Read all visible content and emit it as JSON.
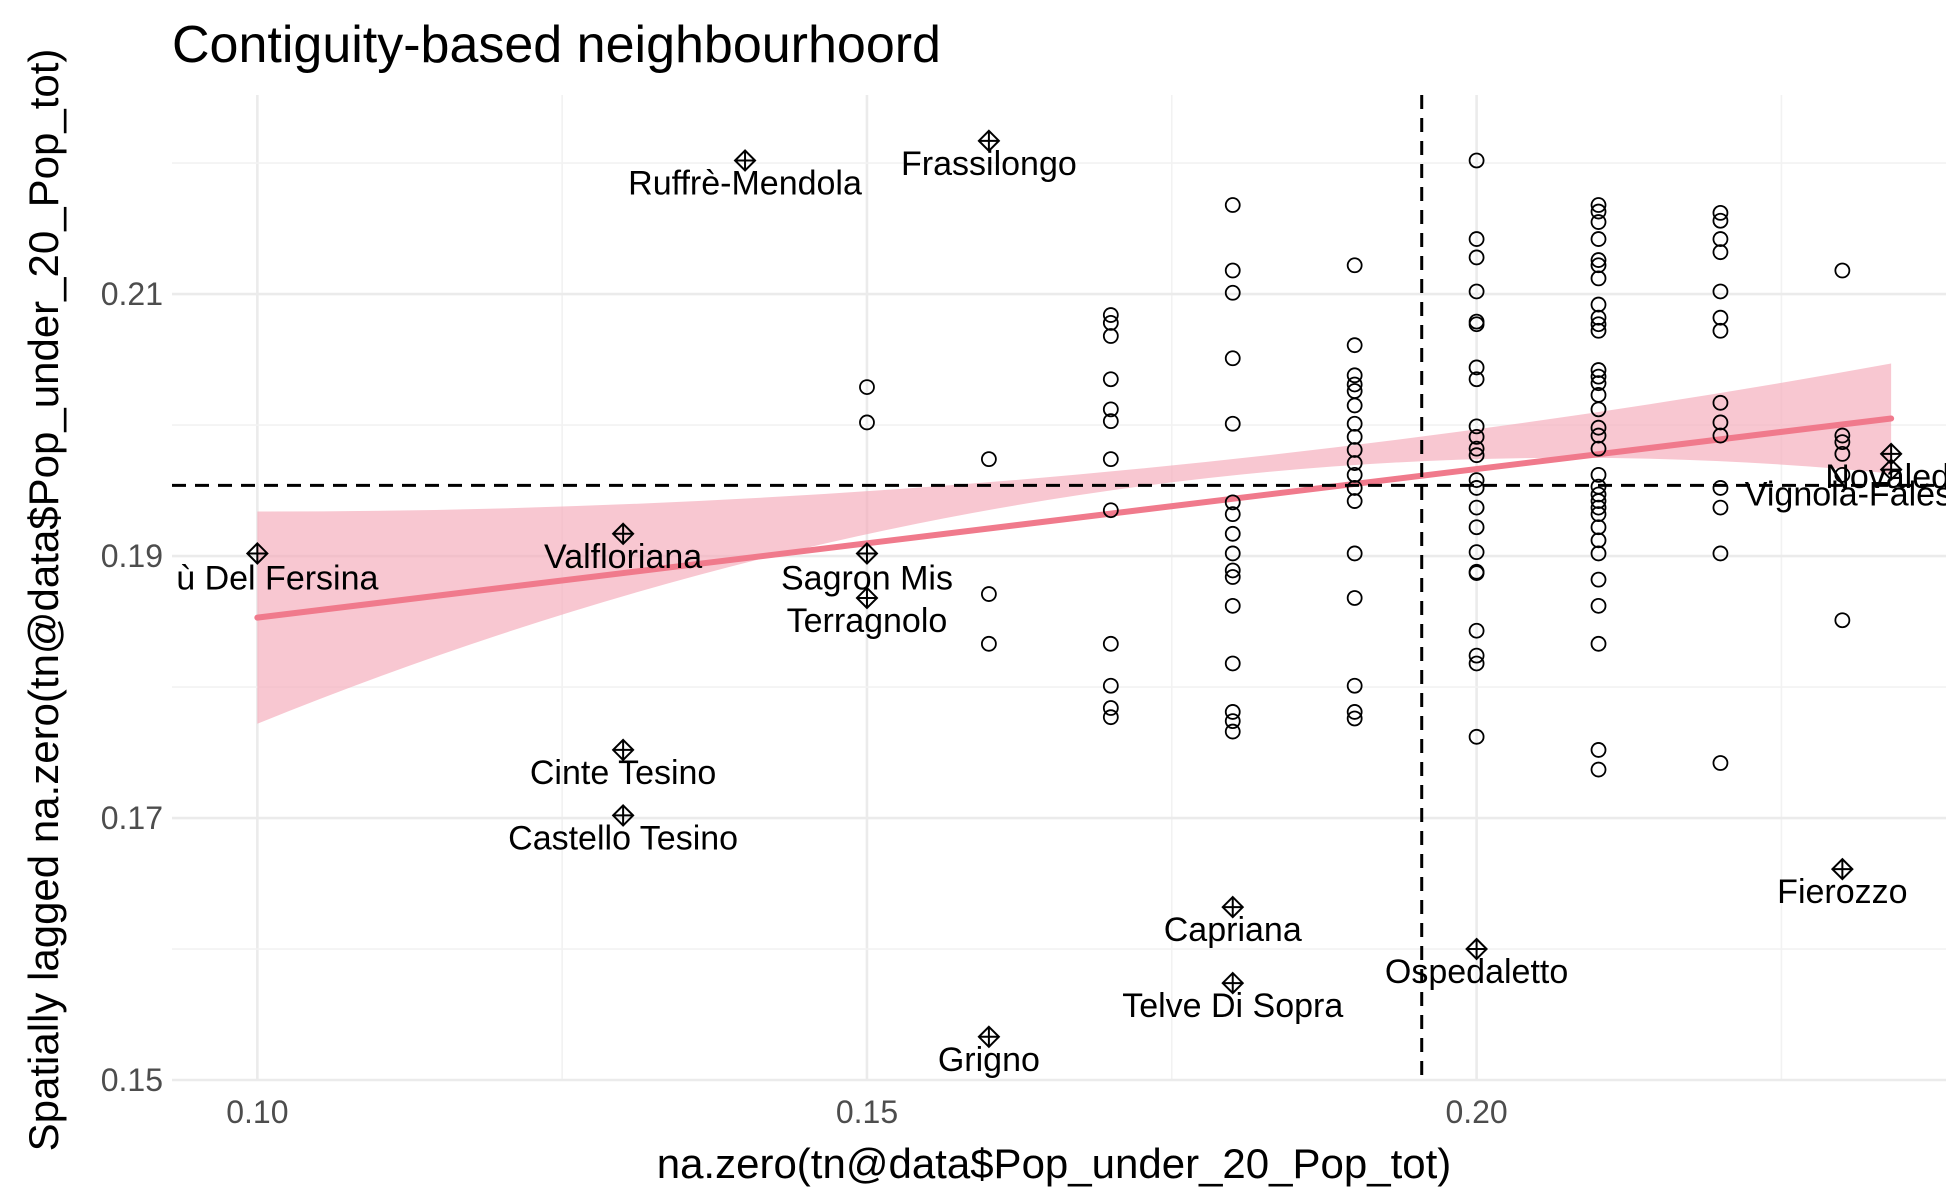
{
  "chart_data": {
    "type": "scatter",
    "title": "Contiguity-based neighbourhoord",
    "xlabel": "na.zero(tn@data$Pop_under_20_Pop_tot)",
    "ylabel": "Spatially lagged na.zero(tn@data$Pop_under_20_Pop_tot)",
    "xlim": [
      0.093,
      0.2385
    ],
    "ylim": [
      0.15,
      0.2252
    ],
    "x_ticks": [
      0.1,
      0.15,
      0.2
    ],
    "x_tick_labels": [
      "0.10",
      "0.15",
      "0.20"
    ],
    "y_ticks": [
      0.15,
      0.17,
      0.19,
      0.21
    ],
    "y_tick_labels": [
      "0.15",
      "0.17",
      "0.19",
      "0.21"
    ],
    "grid": true,
    "reference_lines": {
      "x_mean": 0.1955,
      "y_mean": 0.1954
    },
    "regression": {
      "x_start": 0.1,
      "y_start": 0.1853,
      "x_end": 0.234,
      "y_end": 0.2005,
      "ci_start": [
        0.1772,
        0.1934
      ],
      "ci_mid": [
        0.1946,
        0.1962
      ],
      "ci_end": [
        0.1963,
        0.2047
      ],
      "fill_color": "#f4a9b8",
      "line_color": "#f07a8c"
    },
    "points": [
      [
        0.15,
        0.2002
      ],
      [
        0.15,
        0.2029
      ],
      [
        0.16,
        0.1974
      ],
      [
        0.16,
        0.1871
      ],
      [
        0.16,
        0.1833
      ],
      [
        0.17,
        0.2084
      ],
      [
        0.17,
        0.2078
      ],
      [
        0.17,
        0.2068
      ],
      [
        0.17,
        0.2035
      ],
      [
        0.17,
        0.2012
      ],
      [
        0.17,
        0.2003
      ],
      [
        0.17,
        0.1974
      ],
      [
        0.17,
        0.1935
      ],
      [
        0.17,
        0.1833
      ],
      [
        0.17,
        0.1801
      ],
      [
        0.17,
        0.1784
      ],
      [
        0.17,
        0.1777
      ],
      [
        0.18,
        0.2168
      ],
      [
        0.18,
        0.2118
      ],
      [
        0.18,
        0.2101
      ],
      [
        0.18,
        0.2051
      ],
      [
        0.18,
        0.2001
      ],
      [
        0.18,
        0.1941
      ],
      [
        0.18,
        0.1932
      ],
      [
        0.18,
        0.1917
      ],
      [
        0.18,
        0.1902
      ],
      [
        0.18,
        0.1889
      ],
      [
        0.18,
        0.1884
      ],
      [
        0.18,
        0.1862
      ],
      [
        0.18,
        0.1818
      ],
      [
        0.18,
        0.1781
      ],
      [
        0.18,
        0.1774
      ],
      [
        0.18,
        0.1766
      ],
      [
        0.19,
        0.2122
      ],
      [
        0.19,
        0.2061
      ],
      [
        0.19,
        0.2038
      ],
      [
        0.19,
        0.2031
      ],
      [
        0.19,
        0.2026
      ],
      [
        0.19,
        0.2015
      ],
      [
        0.19,
        0.2001
      ],
      [
        0.19,
        0.1991
      ],
      [
        0.19,
        0.1981
      ],
      [
        0.19,
        0.1971
      ],
      [
        0.19,
        0.1962
      ],
      [
        0.19,
        0.1952
      ],
      [
        0.19,
        0.1942
      ],
      [
        0.19,
        0.1902
      ],
      [
        0.19,
        0.1868
      ],
      [
        0.19,
        0.1801
      ],
      [
        0.19,
        0.1781
      ],
      [
        0.19,
        0.1776
      ],
      [
        0.2,
        0.2202
      ],
      [
        0.2,
        0.2142
      ],
      [
        0.2,
        0.2128
      ],
      [
        0.2,
        0.2102
      ],
      [
        0.2,
        0.2079
      ],
      [
        0.2,
        0.2077
      ],
      [
        0.2,
        0.2044
      ],
      [
        0.2,
        0.2035
      ],
      [
        0.2,
        0.1999
      ],
      [
        0.2,
        0.1991
      ],
      [
        0.2,
        0.1982
      ],
      [
        0.2,
        0.1977
      ],
      [
        0.2,
        0.1958
      ],
      [
        0.2,
        0.1952
      ],
      [
        0.2,
        0.1937
      ],
      [
        0.2,
        0.1922
      ],
      [
        0.2,
        0.1903
      ],
      [
        0.2,
        0.1888
      ],
      [
        0.2,
        0.1887
      ],
      [
        0.2,
        0.1843
      ],
      [
        0.2,
        0.1824
      ],
      [
        0.2,
        0.1818
      ],
      [
        0.2,
        0.1762
      ],
      [
        0.21,
        0.2168
      ],
      [
        0.21,
        0.2163
      ],
      [
        0.21,
        0.2155
      ],
      [
        0.21,
        0.2142
      ],
      [
        0.21,
        0.2126
      ],
      [
        0.21,
        0.2122
      ],
      [
        0.21,
        0.2112
      ],
      [
        0.21,
        0.2092
      ],
      [
        0.21,
        0.2082
      ],
      [
        0.21,
        0.2077
      ],
      [
        0.21,
        0.2072
      ],
      [
        0.21,
        0.2042
      ],
      [
        0.21,
        0.2037
      ],
      [
        0.21,
        0.2032
      ],
      [
        0.21,
        0.2023
      ],
      [
        0.21,
        0.2012
      ],
      [
        0.21,
        0.1998
      ],
      [
        0.21,
        0.1992
      ],
      [
        0.21,
        0.1982
      ],
      [
        0.21,
        0.1962
      ],
      [
        0.21,
        0.1953
      ],
      [
        0.21,
        0.1947
      ],
      [
        0.21,
        0.1942
      ],
      [
        0.21,
        0.1937
      ],
      [
        0.21,
        0.1932
      ],
      [
        0.21,
        0.1922
      ],
      [
        0.21,
        0.1912
      ],
      [
        0.21,
        0.1902
      ],
      [
        0.21,
        0.1882
      ],
      [
        0.21,
        0.1862
      ],
      [
        0.21,
        0.1833
      ],
      [
        0.21,
        0.1752
      ],
      [
        0.21,
        0.1737
      ],
      [
        0.22,
        0.2162
      ],
      [
        0.22,
        0.2156
      ],
      [
        0.22,
        0.2142
      ],
      [
        0.22,
        0.2132
      ],
      [
        0.22,
        0.2102
      ],
      [
        0.22,
        0.2082
      ],
      [
        0.22,
        0.2072
      ],
      [
        0.22,
        0.2017
      ],
      [
        0.22,
        0.2002
      ],
      [
        0.22,
        0.1992
      ],
      [
        0.22,
        0.1952
      ],
      [
        0.22,
        0.1937
      ],
      [
        0.22,
        0.1902
      ],
      [
        0.22,
        0.1742
      ],
      [
        0.23,
        0.2118
      ],
      [
        0.23,
        0.1992
      ],
      [
        0.23,
        0.1987
      ],
      [
        0.23,
        0.1978
      ],
      [
        0.23,
        0.1962
      ],
      [
        0.23,
        0.1851
      ]
    ],
    "influential": [
      {
        "x": 0.14,
        "y": 0.2202,
        "label": "Ruffrè-Mendola",
        "dx": 0,
        "dy": 34
      },
      {
        "x": 0.16,
        "y": 0.2217,
        "label": "Frassilongo",
        "dx": 0,
        "dy": 34
      },
      {
        "x": 0.1,
        "y": 0.1902,
        "label": "ù Del Fersina",
        "dx": 20,
        "dy": 36
      },
      {
        "x": 0.13,
        "y": 0.1917,
        "label": "Valfloriana",
        "dx": 0,
        "dy": 34
      },
      {
        "x": 0.15,
        "y": 0.1902,
        "label": "Sagron Mis",
        "dx": 0,
        "dy": 36
      },
      {
        "x": 0.15,
        "y": 0.1868,
        "label": "Terragnolo",
        "dx": 0,
        "dy": 34
      },
      {
        "x": 0.13,
        "y": 0.1752,
        "label": "Cinte Tesino",
        "dx": 0,
        "dy": 34
      },
      {
        "x": 0.13,
        "y": 0.1702,
        "label": "Castello Tesino",
        "dx": 0,
        "dy": 34
      },
      {
        "x": 0.18,
        "y": 0.1632,
        "label": "Capriana",
        "dx": 0,
        "dy": 34
      },
      {
        "x": 0.18,
        "y": 0.1574,
        "label": "Telve Di Sopra",
        "dx": 0,
        "dy": 34
      },
      {
        "x": 0.16,
        "y": 0.1533,
        "label": "Grigno",
        "dx": 0,
        "dy": 34
      },
      {
        "x": 0.2,
        "y": 0.16,
        "label": "Ospedaletto",
        "dx": 0,
        "dy": 34
      },
      {
        "x": 0.23,
        "y": 0.1661,
        "label": "Fierozzo",
        "dx": 0,
        "dy": 34
      },
      {
        "x": 0.234,
        "y": 0.1978,
        "label": "Novaledo",
        "dx": 6,
        "dy": 34
      },
      {
        "x": 0.234,
        "y": 0.1966,
        "label": "Vignola-Falesina",
        "dx": -20,
        "dy": 36
      }
    ],
    "colors": {
      "point": "#000000",
      "ci_fill": "#f4a9b8",
      "fit_line": "#f07a8c",
      "reference": "#000000"
    }
  }
}
